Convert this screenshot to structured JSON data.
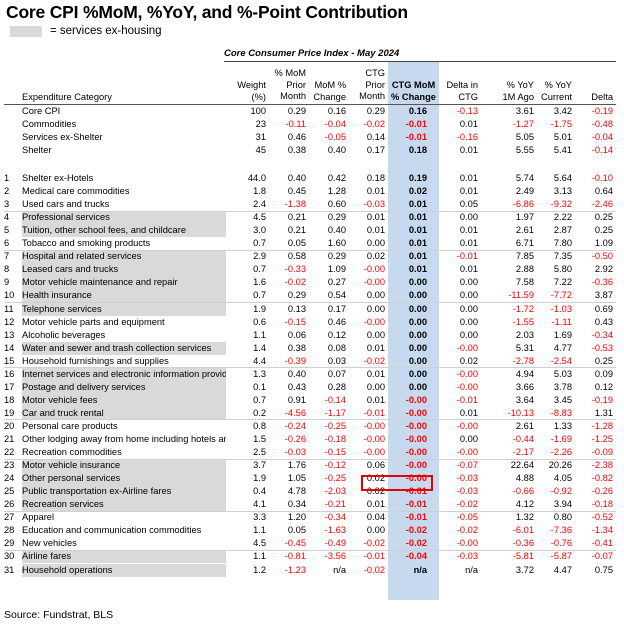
{
  "title": "Core CPI %MoM, %YoY, and %-Point Contribution",
  "legend": {
    "label": "= services ex-housing"
  },
  "table_title": "Core Consumer Price Index - May 2024",
  "headers": {
    "category": "Expenditure Category",
    "weight": [
      "Weight",
      "(%)"
    ],
    "mom_prior": [
      "% MoM",
      "Prior",
      "Month"
    ],
    "mom_change": [
      "MoM %",
      "Change"
    ],
    "ctg_prior": [
      "CTG",
      "Prior",
      "Month"
    ],
    "ctg_mom": [
      "CTG MoM",
      "% Change"
    ],
    "delta_ctg": [
      "Delta in",
      "CTG"
    ],
    "yoy_ago": [
      "% YoY",
      "1M Ago"
    ],
    "yoy_current": [
      "% YoY",
      "Current"
    ],
    "delta": [
      "Delta"
    ]
  },
  "summary_rows": [
    {
      "name": "Core CPI",
      "weight": "100",
      "mom_prior": "0.29",
      "mom": "0.16",
      "ctg_prior": "0.29",
      "ctg": "0.16",
      "delta_ctg": "-0.13",
      "yoy_ago": "3.61",
      "yoy": "3.42",
      "delta": "-0.19"
    },
    {
      "name": "Commodities",
      "weight": "23",
      "mom_prior": "-0.11",
      "mom": "-0.04",
      "ctg_prior": "-0.02",
      "ctg": "-0.01",
      "delta_ctg": "0.01",
      "yoy_ago": "-1.27",
      "yoy": "-1.75",
      "delta": "-0.48"
    },
    {
      "name": "Services ex-Shelter",
      "weight": "31",
      "mom_prior": "0.46",
      "mom": "-0.05",
      "ctg_prior": "0.14",
      "ctg": "-0.01",
      "delta_ctg": "-0.16",
      "yoy_ago": "5.05",
      "yoy": "5.01",
      "delta": "-0.04"
    },
    {
      "name": "Shelter",
      "weight": "45",
      "mom_prior": "0.38",
      "mom": "0.40",
      "ctg_prior": "0.17",
      "ctg": "0.18",
      "delta_ctg": "0.01",
      "yoy_ago": "5.55",
      "yoy": "5.41",
      "delta": "-0.14"
    }
  ],
  "rows": [
    {
      "num": "1",
      "name": "Shelter ex-Hotels",
      "services": false,
      "weight": "44.0",
      "mom_prior": "0.40",
      "mom": "0.42",
      "ctg_prior": "0.18",
      "ctg": "0.19",
      "delta_ctg": "0.01",
      "yoy_ago": "5.74",
      "yoy": "5.64",
      "delta": "-0.10"
    },
    {
      "num": "2",
      "name": "Medical care commodities",
      "services": false,
      "weight": "1.8",
      "mom_prior": "0.45",
      "mom": "1.28",
      "ctg_prior": "0.01",
      "ctg": "0.02",
      "delta_ctg": "0.01",
      "yoy_ago": "2.49",
      "yoy": "3.13",
      "delta": "0.64"
    },
    {
      "num": "3",
      "name": "Used cars and trucks",
      "services": false,
      "weight": "2.4",
      "mom_prior": "-1.38",
      "mom": "0.60",
      "ctg_prior": "-0.03",
      "ctg": "0.01",
      "delta_ctg": "0.05",
      "yoy_ago": "-6.86",
      "yoy": "-9.32",
      "delta": "-2.46"
    },
    {
      "num": "4",
      "name": "Professional services",
      "services": true,
      "weight": "4.5",
      "mom_prior": "0.21",
      "mom": "0.29",
      "ctg_prior": "0.01",
      "ctg": "0.01",
      "delta_ctg": "0.00",
      "yoy_ago": "1.97",
      "yoy": "2.22",
      "delta": "0.25"
    },
    {
      "num": "5",
      "name": "Tuition, other school fees, and childcare",
      "services": true,
      "weight": "3.0",
      "mom_prior": "0.21",
      "mom": "0.40",
      "ctg_prior": "0.01",
      "ctg": "0.01",
      "delta_ctg": "0.01",
      "yoy_ago": "2.61",
      "yoy": "2.87",
      "delta": "0.25"
    },
    {
      "num": "6",
      "name": "Tobacco and smoking products",
      "services": false,
      "weight": "0.7",
      "mom_prior": "0.05",
      "mom": "1.60",
      "ctg_prior": "0.00",
      "ctg": "0.01",
      "delta_ctg": "0.01",
      "yoy_ago": "6.71",
      "yoy": "7.80",
      "delta": "1.09"
    },
    {
      "num": "7",
      "name": "Hospital and related services",
      "services": true,
      "weight": "2.9",
      "mom_prior": "0.58",
      "mom": "0.29",
      "ctg_prior": "0.02",
      "ctg": "0.01",
      "delta_ctg": "-0.01",
      "yoy_ago": "7.85",
      "yoy": "7.35",
      "delta": "-0.50"
    },
    {
      "num": "8",
      "name": "Leased cars and trucks",
      "services": true,
      "weight": "0.7",
      "mom_prior": "-0.33",
      "mom": "1.09",
      "ctg_prior": "-0.00",
      "ctg": "0.01",
      "delta_ctg": "0.01",
      "yoy_ago": "2.88",
      "yoy": "5.80",
      "delta": "2.92"
    },
    {
      "num": "9",
      "name": "Motor vehicle maintenance and repair",
      "services": true,
      "weight": "1.6",
      "mom_prior": "-0.02",
      "mom": "0.27",
      "ctg_prior": "-0.00",
      "ctg": "0.00",
      "delta_ctg": "0.00",
      "yoy_ago": "7.58",
      "yoy": "7.22",
      "delta": "-0.36"
    },
    {
      "num": "10",
      "name": "Health insurance",
      "services": true,
      "weight": "0.7",
      "mom_prior": "0.29",
      "mom": "0.54",
      "ctg_prior": "0.00",
      "ctg": "0.00",
      "delta_ctg": "0.00",
      "yoy_ago": "-11.59",
      "yoy": "-7.72",
      "delta": "3.87"
    },
    {
      "num": "11",
      "name": "Telephone services",
      "services": true,
      "weight": "1.9",
      "mom_prior": "0.13",
      "mom": "0.17",
      "ctg_prior": "0.00",
      "ctg": "0.00",
      "delta_ctg": "0.00",
      "yoy_ago": "-1.72",
      "yoy": "-1.03",
      "delta": "0.69"
    },
    {
      "num": "12",
      "name": "Motor vehicle parts and equipment",
      "services": false,
      "weight": "0.6",
      "mom_prior": "-0.15",
      "mom": "0.46",
      "ctg_prior": "-0.00",
      "ctg": "0.00",
      "delta_ctg": "0.00",
      "yoy_ago": "-1.55",
      "yoy": "-1.11",
      "delta": "0.43"
    },
    {
      "num": "13",
      "name": "Alcoholic beverages",
      "services": false,
      "weight": "1.1",
      "mom_prior": "0.06",
      "mom": "0.12",
      "ctg_prior": "0.00",
      "ctg": "0.00",
      "delta_ctg": "0.00",
      "yoy_ago": "2.03",
      "yoy": "1.69",
      "delta": "-0.34"
    },
    {
      "num": "14",
      "name": "Water and sewer and trash collection services",
      "services": true,
      "weight": "1.4",
      "mom_prior": "0.38",
      "mom": "0.08",
      "ctg_prior": "0.01",
      "ctg": "0.00",
      "delta_ctg": "-0.00",
      "yoy_ago": "5.31",
      "yoy": "4.77",
      "delta": "-0.53"
    },
    {
      "num": "15",
      "name": "Household furnishings and supplies",
      "services": false,
      "weight": "4.4",
      "mom_prior": "-0.39",
      "mom": "0.03",
      "ctg_prior": "-0.02",
      "ctg": "0.00",
      "delta_ctg": "0.02",
      "yoy_ago": "-2.78",
      "yoy": "-2.54",
      "delta": "0.25"
    },
    {
      "num": "16",
      "name": "Internet services and electronic information provide",
      "services": true,
      "weight": "1.3",
      "mom_prior": "0.40",
      "mom": "0.07",
      "ctg_prior": "0.01",
      "ctg": "0.00",
      "delta_ctg": "-0.00",
      "yoy_ago": "4.94",
      "yoy": "5.03",
      "delta": "0.09"
    },
    {
      "num": "17",
      "name": "Postage and delivery services",
      "services": true,
      "weight": "0.1",
      "mom_prior": "0.43",
      "mom": "0.28",
      "ctg_prior": "0.00",
      "ctg": "0.00",
      "delta_ctg": "-0.00",
      "yoy_ago": "3.66",
      "yoy": "3.78",
      "delta": "0.12"
    },
    {
      "num": "18",
      "name": "Motor vehicle fees",
      "services": true,
      "weight": "0.7",
      "mom_prior": "0.91",
      "mom": "-0.14",
      "ctg_prior": "0.01",
      "ctg": "-0.00",
      "delta_ctg": "-0.01",
      "yoy_ago": "3.64",
      "yoy": "3.45",
      "delta": "-0.19"
    },
    {
      "num": "19",
      "name": "Car and truck rental",
      "services": true,
      "weight": "0.2",
      "mom_prior": "-4.56",
      "mom": "-1.17",
      "ctg_prior": "-0.01",
      "ctg": "-0.00",
      "delta_ctg": "0.01",
      "yoy_ago": "-10.13",
      "yoy": "-8.83",
      "delta": "1.31"
    },
    {
      "num": "20",
      "name": "Personal care products",
      "services": false,
      "weight": "0.8",
      "mom_prior": "-0.24",
      "mom": "-0.25",
      "ctg_prior": "-0.00",
      "ctg": "-0.00",
      "delta_ctg": "-0.00",
      "yoy_ago": "2.61",
      "yoy": "1.33",
      "delta": "-1.28"
    },
    {
      "num": "21",
      "name": "Other lodging away from home including hotels and",
      "services": false,
      "weight": "1.5",
      "mom_prior": "-0.26",
      "mom": "-0.18",
      "ctg_prior": "-0.00",
      "ctg": "-0.00",
      "delta_ctg": "0.00",
      "yoy_ago": "-0.44",
      "yoy": "-1.69",
      "delta": "-1.25"
    },
    {
      "num": "22",
      "name": "Recreation commodities",
      "services": false,
      "weight": "2.5",
      "mom_prior": "-0.03",
      "mom": "-0.15",
      "ctg_prior": "-0.00",
      "ctg": "-0.00",
      "delta_ctg": "-0.00",
      "yoy_ago": "-2.17",
      "yoy": "-2.26",
      "delta": "-0.09"
    },
    {
      "num": "23",
      "name": "Motor vehicle insurance",
      "services": true,
      "weight": "3.7",
      "mom_prior": "1.76",
      "mom": "-0.12",
      "ctg_prior": "0.06",
      "ctg": "-0.00",
      "delta_ctg": "-0.07",
      "yoy_ago": "22.64",
      "yoy": "20.26",
      "delta": "-2.38"
    },
    {
      "num": "24",
      "name": "Other personal services",
      "services": true,
      "weight": "1.9",
      "mom_prior": "1.05",
      "mom": "-0.25",
      "ctg_prior": "0.02",
      "ctg": "-0.00",
      "delta_ctg": "-0.03",
      "yoy_ago": "4.88",
      "yoy": "4.05",
      "delta": "-0.82"
    },
    {
      "num": "25",
      "name": "Public transportation ex-Airline fares",
      "services": true,
      "weight": "0.4",
      "mom_prior": "4.78",
      "mom": "-2.03",
      "ctg_prior": "0.02",
      "ctg": "-0.01",
      "delta_ctg": "-0.03",
      "yoy_ago": "-0.66",
      "yoy": "-0.92",
      "delta": "-0.26"
    },
    {
      "num": "26",
      "name": "Recreation services",
      "services": true,
      "weight": "4.1",
      "mom_prior": "0.34",
      "mom": "-0.21",
      "ctg_prior": "0.01",
      "ctg": "-0.01",
      "delta_ctg": "-0.02",
      "yoy_ago": "4.12",
      "yoy": "3.94",
      "delta": "-0.18"
    },
    {
      "num": "27",
      "name": "Apparel",
      "services": false,
      "weight": "3.3",
      "mom_prior": "1.20",
      "mom": "-0.34",
      "ctg_prior": "0.04",
      "ctg": "-0.01",
      "delta_ctg": "-0.05",
      "yoy_ago": "1.32",
      "yoy": "0.80",
      "delta": "-0.52"
    },
    {
      "num": "28",
      "name": "Education and communication commodities",
      "services": false,
      "weight": "1.1",
      "mom_prior": "0.05",
      "mom": "-1.63",
      "ctg_prior": "0.00",
      "ctg": "-0.02",
      "delta_ctg": "-0.02",
      "yoy_ago": "-6.01",
      "yoy": "-7.36",
      "delta": "-1.34"
    },
    {
      "num": "29",
      "name": "New vehicles",
      "services": false,
      "weight": "4.5",
      "mom_prior": "-0.45",
      "mom": "-0.49",
      "ctg_prior": "-0.02",
      "ctg": "-0.02",
      "delta_ctg": "-0.00",
      "yoy_ago": "-0.36",
      "yoy": "-0.76",
      "delta": "-0.41"
    },
    {
      "num": "30",
      "name": "Airline fares",
      "services": true,
      "weight": "1.1",
      "mom_prior": "-0.81",
      "mom": "-3.56",
      "ctg_prior": "-0.01",
      "ctg": "-0.04",
      "delta_ctg": "-0.03",
      "yoy_ago": "-5.81",
      "yoy": "-5.87",
      "delta": "-0.07"
    },
    {
      "num": "31",
      "name": "Household operations",
      "services": true,
      "weight": "1.2",
      "mom_prior": "-1.23",
      "mom": "n/a",
      "ctg_prior": "-0.02",
      "ctg": "n/a",
      "delta_ctg": "n/a",
      "yoy_ago": "3.72",
      "yoy": "4.47",
      "delta": "0.75"
    }
  ],
  "source": "Source: Fundstrat, BLS",
  "colors": {
    "negative": "#ff0000",
    "services_shade": "#d9d9d9",
    "ctg_highlight": "#c6d9ee",
    "callout": "#e00000"
  }
}
